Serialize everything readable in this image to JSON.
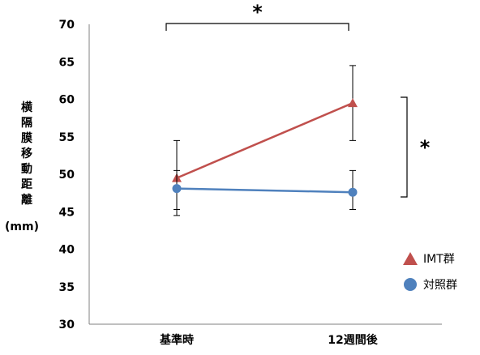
{
  "chart_data": {
    "type": "line",
    "title": "",
    "xlabel": "",
    "ylabel": "横隔膜移動距離",
    "ylabel_unit": "(mm)",
    "categories": [
      "基準時",
      "12週間後"
    ],
    "ylim": [
      30,
      70
    ],
    "yticks": [
      30,
      35,
      40,
      45,
      50,
      55,
      60,
      65,
      70
    ],
    "grid": false,
    "legend_position": "bottom-right",
    "series": [
      {
        "name": "IMT群",
        "marker": "triangle",
        "color": "#c0504d",
        "values": [
          49.5,
          59.5
        ],
        "error_low": [
          44.5,
          54.5
        ],
        "error_high": [
          54.5,
          64.5
        ]
      },
      {
        "name": "対照群",
        "marker": "circle",
        "color": "#4f81bd",
        "values": [
          48.1,
          47.6
        ],
        "error_low": [
          45.3,
          45.3
        ],
        "error_high": [
          50.5,
          50.5
        ]
      }
    ],
    "annotations": [
      {
        "text": "*",
        "type": "bracket-horizontal",
        "between": [
          "基準時",
          "12週間後"
        ],
        "series": "IMT群"
      },
      {
        "text": "*",
        "type": "bracket-vertical",
        "category": "12週間後",
        "between_series": [
          "IMT群",
          "対照群"
        ]
      }
    ]
  },
  "legend": {
    "items": [
      {
        "label": "IMT群",
        "icon": "triangle-icon",
        "color": "#c0504d"
      },
      {
        "label": "対照群",
        "icon": "circle-icon",
        "color": "#4f81bd"
      }
    ]
  }
}
